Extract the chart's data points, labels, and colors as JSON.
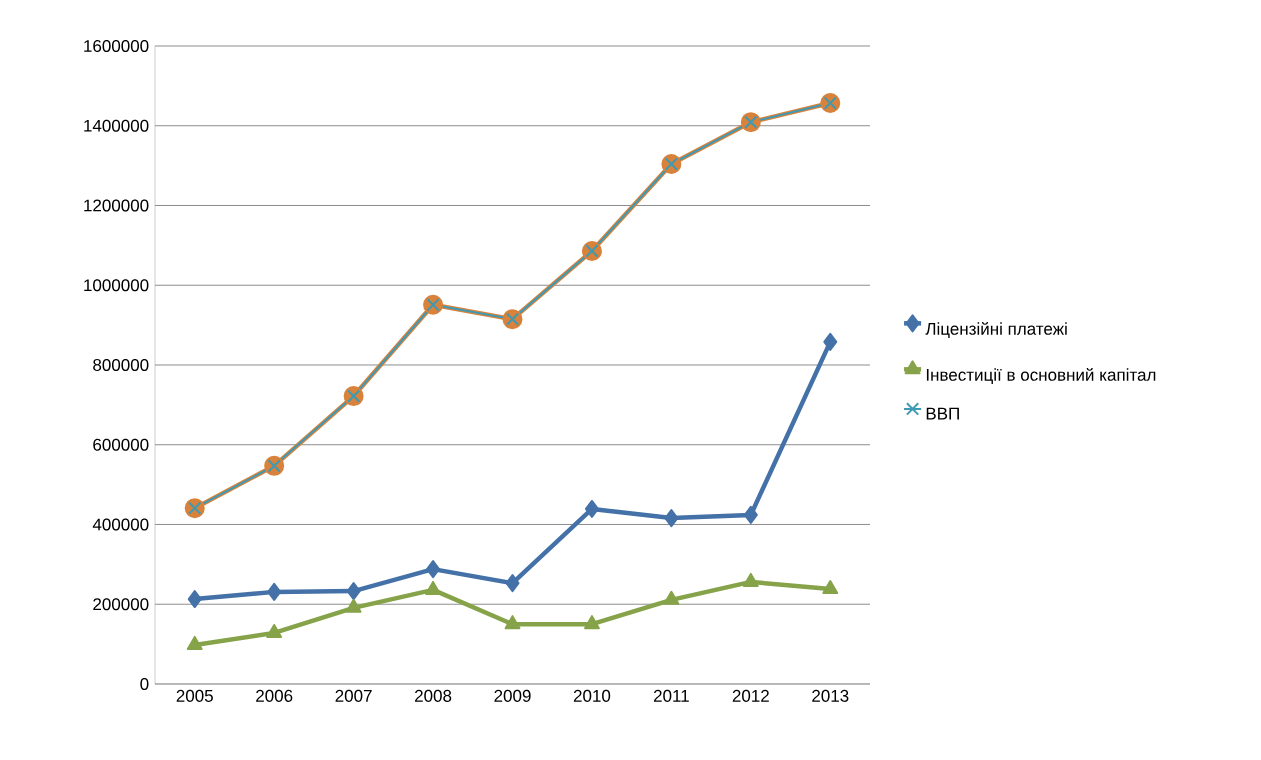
{
  "chart_data": {
    "type": "line",
    "categories": [
      "2005",
      "2006",
      "2007",
      "2008",
      "2009",
      "2010",
      "2011",
      "2012",
      "2013"
    ],
    "series": [
      {
        "name": "Ліцензійні платежі",
        "color": "#4472a8",
        "marker": "diamond",
        "values": [
          213000,
          231000,
          233000,
          288000,
          253000,
          439000,
          416000,
          424000,
          858000
        ]
      },
      {
        "name": "Інвестиції в основний капітал",
        "color": "#86a34a",
        "marker": "triangle",
        "values": [
          98000,
          128000,
          191000,
          236000,
          150000,
          150000,
          211000,
          256000,
          238000
        ]
      },
      {
        "color": "#d9823b",
        "marker": "circle",
        "values": [
          441000,
          547000,
          722000,
          951000,
          915000,
          1086000,
          1304000,
          1409000,
          1457000
        ]
      },
      {
        "name": "ВВП",
        "color": "#3d9ab5",
        "marker": "cross",
        "values": [
          441000,
          547000,
          722000,
          951000,
          915000,
          1086000,
          1304000,
          1409000,
          1457000
        ]
      }
    ],
    "ylim": [
      0,
      1600000
    ],
    "yticks": [
      0,
      200000,
      400000,
      600000,
      800000,
      1000000,
      1200000,
      1400000,
      1600000
    ],
    "grid": "y",
    "legend": "right"
  }
}
